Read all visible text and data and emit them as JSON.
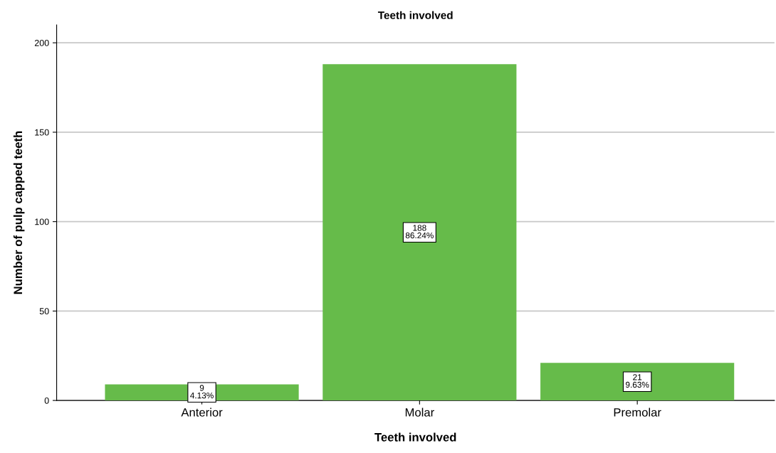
{
  "chart_data": {
    "type": "bar",
    "title": "Teeth involved",
    "xlabel": "Teeth involved",
    "ylabel": "Number of pulp capped teeth",
    "categories": [
      "Anterior",
      "Molar",
      "Premolar"
    ],
    "values": [
      9,
      188,
      21
    ],
    "value_labels": [
      "9\n4.13%",
      "188\n86.24%",
      "21\n9.63%"
    ],
    "color": "#66bb4a",
    "ylim": [
      0,
      210
    ],
    "yticks": [
      0,
      50,
      100,
      150,
      200
    ],
    "grid": "y"
  }
}
